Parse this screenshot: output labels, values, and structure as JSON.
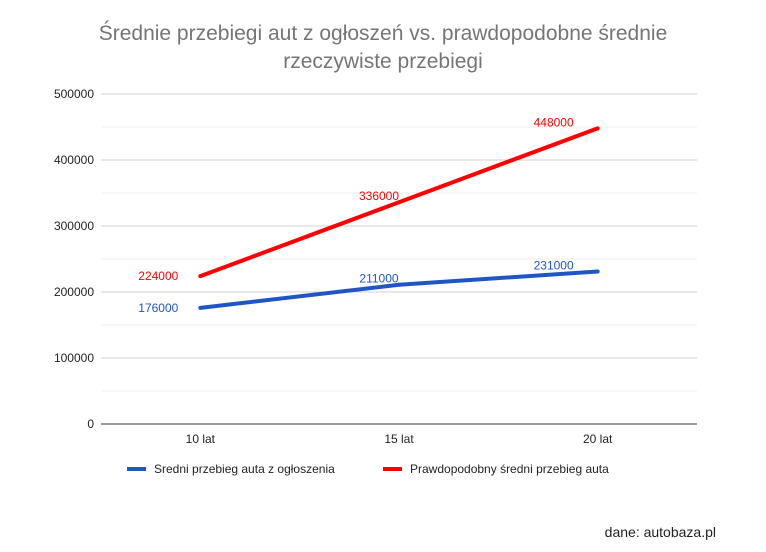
{
  "chart_data": {
    "type": "line",
    "title_lines": [
      "Średnie przebiegi aut z ogłoszeń vs. prawdopodobne średnie",
      "rzeczywiste przebiegi"
    ],
    "categories": [
      "10 lat",
      "15 lat",
      "20 lat"
    ],
    "y_ticks": [
      "0",
      "100000",
      "200000",
      "300000",
      "400000",
      "500000"
    ],
    "ylim": [
      0,
      500000
    ],
    "minor_gridlines": true,
    "legend_position": "bottom",
    "series": [
      {
        "name": "Sredni przebieg auta z ogłoszenia",
        "color": "#1f56c4",
        "values": [
          176000,
          211000,
          231000
        ],
        "labels": [
          "176000",
          "211000",
          "231000"
        ]
      },
      {
        "name": "Prawdopodobny średni przebieg auta",
        "color": "#ff0000",
        "values": [
          224000,
          336000,
          448000
        ],
        "labels": [
          "224000",
          "336000",
          "448000"
        ]
      }
    ]
  },
  "source": "dane: autobaza.pl"
}
